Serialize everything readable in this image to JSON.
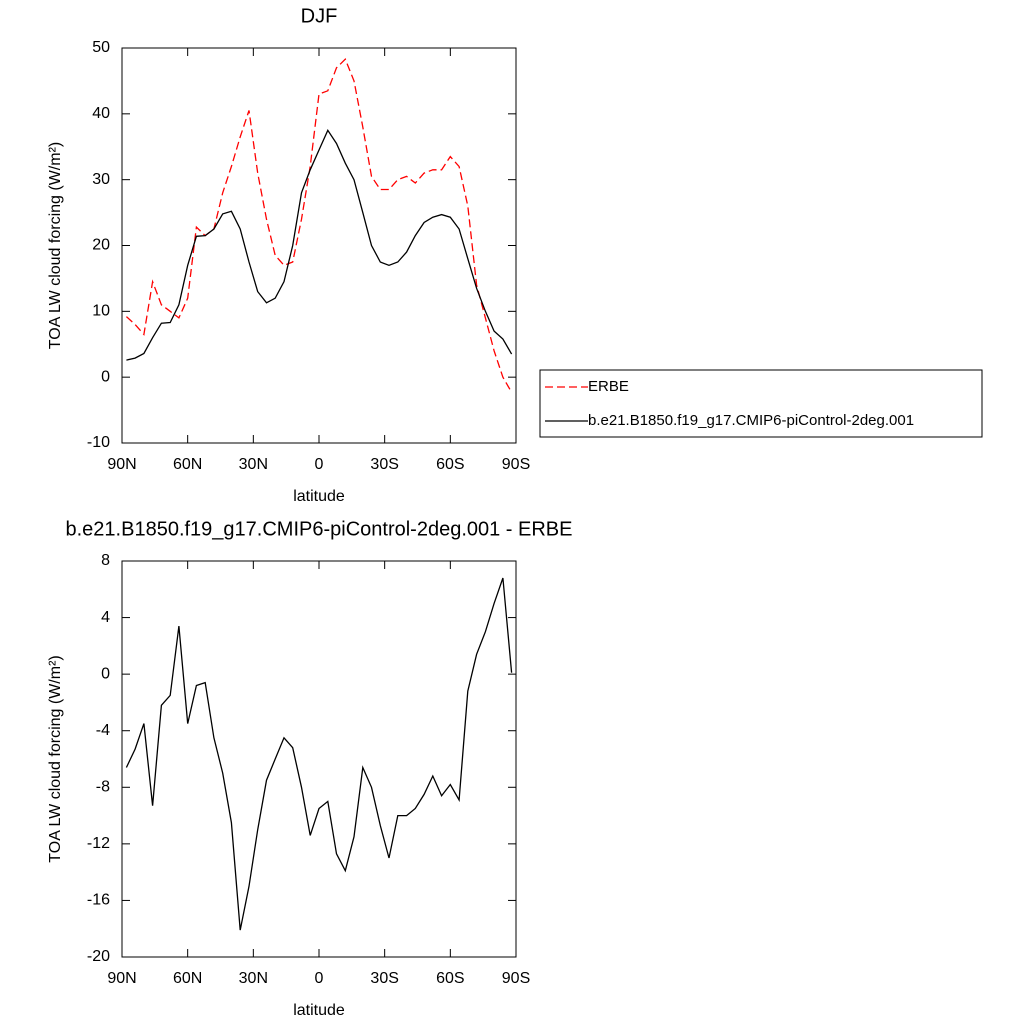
{
  "chart_data": [
    {
      "type": "line",
      "title": "DJF",
      "xlabel": "latitude",
      "ylabel": "TOA LW cloud forcing (W/m²)",
      "x": [
        88,
        84,
        80,
        76,
        72,
        68,
        64,
        60,
        56,
        52,
        48,
        44,
        40,
        36,
        32,
        28,
        24,
        20,
        16,
        12,
        8,
        4,
        0,
        -4,
        -8,
        -12,
        -16,
        -20,
        -24,
        -28,
        -32,
        -36,
        -40,
        -44,
        -48,
        -52,
        -56,
        -60,
        -64,
        -68,
        -72,
        -76,
        -80,
        -84,
        -88
      ],
      "series": [
        {
          "name": "ERBE",
          "color": "#ff0000",
          "linestyle": "dashed",
          "values": [
            9.2,
            8,
            6.5,
            14.5,
            11,
            10,
            9,
            12,
            22.8,
            21.5,
            22.5,
            28,
            32,
            36.5,
            40.5,
            31,
            24,
            18.5,
            17,
            17.5,
            24,
            32,
            43,
            43.5,
            47,
            48.3,
            45,
            38,
            30.5,
            28.5,
            28.5,
            30,
            30.5,
            29.5,
            31,
            31.5,
            31.5,
            33.5,
            32,
            26,
            14,
            9,
            4,
            0,
            -2.3
          ]
        },
        {
          "name": "b.e21.B1850.f19_g17.CMIP6-piControl-2deg.001",
          "color": "#000000",
          "linestyle": "solid",
          "values": [
            2.6,
            2.9,
            3.6,
            6,
            8.2,
            8.3,
            11,
            17,
            21.4,
            21.5,
            22.5,
            24.8,
            25.2,
            22.5,
            17.5,
            13,
            11.3,
            12,
            14.5,
            20,
            28,
            31.5,
            34.5,
            37.5,
            35.5,
            32.5,
            30,
            25,
            20,
            17.5,
            17,
            17.5,
            19,
            21.5,
            23.5,
            24.3,
            24.7,
            24.3,
            22.5,
            18,
            13.5,
            10,
            7,
            5.8,
            3.5
          ]
        }
      ],
      "xlim": [
        90,
        -90
      ],
      "xticks": [
        {
          "value": 90,
          "label": "90N"
        },
        {
          "value": 60,
          "label": "60N"
        },
        {
          "value": 30,
          "label": "30N"
        },
        0,
        {
          "value": -30,
          "label": "30S"
        },
        {
          "value": -60,
          "label": "60S"
        },
        {
          "value": -90,
          "label": "90S"
        }
      ],
      "ylim": [
        -10,
        50
      ],
      "yticks": [
        -10,
        0,
        10,
        20,
        30,
        40,
        50
      ],
      "legend": "outside-right"
    },
    {
      "type": "line",
      "title": "b.e21.B1850.f19_g17.CMIP6-piControl-2deg.001 - ERBE",
      "xlabel": "latitude",
      "ylabel": "TOA LW cloud forcing (W/m²)",
      "x": [
        88,
        84,
        80,
        76,
        72,
        68,
        64,
        60,
        56,
        52,
        48,
        44,
        40,
        36,
        32,
        28,
        24,
        20,
        16,
        12,
        8,
        4,
        0,
        -4,
        -8,
        -12,
        -16,
        -20,
        -24,
        -28,
        -32,
        -36,
        -40,
        -44,
        -48,
        -52,
        -56,
        -60,
        -64,
        -68,
        -72,
        -76,
        -80,
        -84,
        -88
      ],
      "series": [
        {
          "color": "#000000",
          "linestyle": "solid",
          "values": [
            -6.6,
            -5.3,
            -3.5,
            -9.3,
            -2.2,
            -1.5,
            3.4,
            -3.5,
            -0.8,
            -0.6,
            -4.5,
            -7,
            -10.5,
            -18.1,
            -15,
            -11,
            -7.5,
            -6,
            -4.5,
            -5.2,
            -8,
            -11.4,
            -9.5,
            -9,
            -12.7,
            -13.9,
            -11.5,
            -6.6,
            -8,
            -10.7,
            -13,
            -10,
            -10,
            -9.5,
            -8.5,
            -7.2,
            -8.6,
            -7.8,
            -8.9,
            -1.2,
            1.4,
            3,
            5,
            6.8,
            0.1
          ]
        }
      ],
      "xlim": [
        90,
        -90
      ],
      "xticks": [
        {
          "value": 90,
          "label": "90N"
        },
        {
          "value": 60,
          "label": "60N"
        },
        {
          "value": 30,
          "label": "30N"
        },
        0,
        {
          "value": -30,
          "label": "30S"
        },
        {
          "value": -60,
          "label": "60S"
        },
        {
          "value": -90,
          "label": "90S"
        }
      ],
      "ylim": [
        -20,
        8
      ],
      "yticks": [
        -20,
        -16,
        -12,
        -8,
        -4,
        0,
        4,
        8
      ]
    }
  ]
}
